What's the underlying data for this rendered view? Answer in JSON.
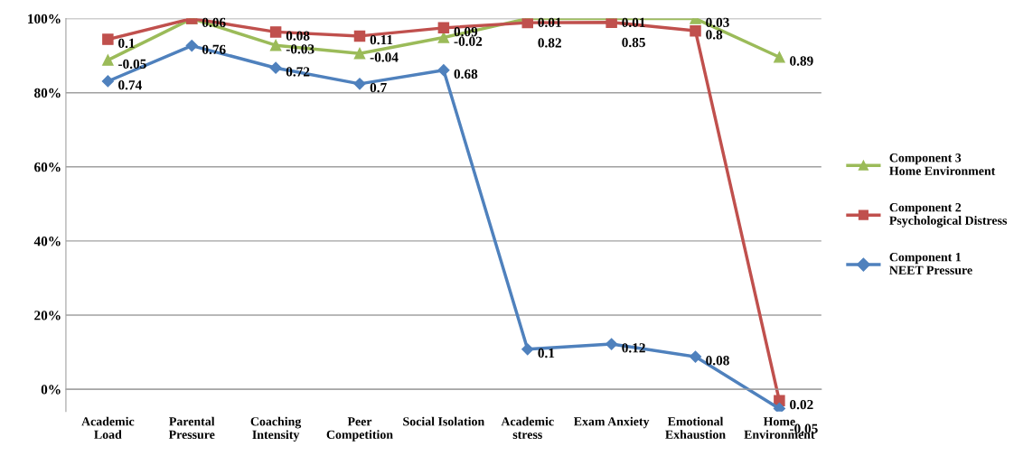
{
  "chart_data": {
    "type": "line",
    "categories": [
      "Academic\nLoad",
      "Parental\nPressure",
      "Coaching\nIntensity",
      "Peer\nCompetition",
      "Social Isolation",
      "Academic\nstress",
      "Exam Anxiety",
      "Emotional\nExhaustion",
      "Home\nEnvironment"
    ],
    "series": [
      {
        "name": "Component 3\nHome Environment",
        "color": "#9bbb59",
        "marker": "triangle",
        "values": [
          88.8,
          100,
          92.8,
          90.6,
          94.9,
          100,
          100,
          100,
          89.6
        ]
      },
      {
        "name": "Component 2\nPsychological Distress",
        "color": "#c0504d",
        "marker": "square",
        "values": [
          94.4,
          100,
          96.4,
          95.3,
          97.5,
          98.9,
          99.0,
          96.7,
          -3.1
        ]
      },
      {
        "name": "Component 1\nNEET Pressure",
        "color": "#4f81bd",
        "marker": "diamond",
        "values": [
          83.1,
          92.7,
          86.7,
          82.4,
          86.1,
          10.8,
          12.2,
          8.8,
          -5.2
        ]
      }
    ],
    "annotations": [
      {
        "text": "-0.05",
        "x": "Academic\nLoad",
        "y": 88.8
      },
      {
        "text": "-0.03",
        "x": "Coaching\nIntensity",
        "y": 92.8
      },
      {
        "text": "-0.04",
        "x": "Peer\nCompetition",
        "y": 90.6
      },
      {
        "text": "-0.02",
        "x": "Social Isolation",
        "y": 94.9
      },
      {
        "text": "0.01",
        "x": "Academic\nstress",
        "y": 100
      },
      {
        "text": "0.01",
        "x": "Exam Anxiety",
        "y": 100
      },
      {
        "text": "0.03",
        "x": "Emotional\nExhaustion",
        "y": 100
      },
      {
        "text": "0.89",
        "x": "Home\nEnvironment",
        "y": 89.6
      },
      {
        "text": "0.1",
        "x": "Academic\nLoad",
        "y": 94.4
      },
      {
        "text": "0.06",
        "x": "Parental\nPressure",
        "y": 100
      },
      {
        "text": "0.08",
        "x": "Coaching\nIntensity",
        "y": 96.4
      },
      {
        "text": "0.11",
        "x": "Peer\nCompetition",
        "y": 95.3
      },
      {
        "text": "0.09",
        "x": "Social Isolation",
        "y": 97.5
      },
      {
        "text": "0.82",
        "x": "Academic\nstress",
        "y": 98.9
      },
      {
        "text": "0.85",
        "x": "Exam Anxiety",
        "y": 99.0
      },
      {
        "text": "0.8",
        "x": "Emotional\nExhaustion",
        "y": 96.7
      },
      {
        "text": "0.02",
        "x": "Home\nEnvironment",
        "y": -3.1
      },
      {
        "text": "0.74",
        "x": "Academic\nLoad",
        "y": 83.1
      },
      {
        "text": "0.76",
        "x": "Parental\nPressure",
        "y": 92.7
      },
      {
        "text": "0.72",
        "x": "Coaching\nIntensity",
        "y": 86.7
      },
      {
        "text": "0.7",
        "x": "Peer\nCompetition",
        "y": 82.4
      },
      {
        "text": "0.68",
        "x": "Social Isolation",
        "y": 86.1
      },
      {
        "text": "0.1",
        "x": "Academic\nstress",
        "y": 10.8
      },
      {
        "text": "0.12",
        "x": "Exam Anxiety",
        "y": 12.2
      },
      {
        "text": "0.08",
        "x": "Emotional\nExhaustion",
        "y": 8.8
      },
      {
        "text": "-0.05",
        "x": "Home\nEnvironment",
        "y": -5.2
      }
    ],
    "ylim": [
      -6,
      100
    ],
    "yticks": [
      {
        "value": 0,
        "label": "0%"
      },
      {
        "value": 20,
        "label": "20%"
      },
      {
        "value": 40,
        "label": "40%"
      },
      {
        "value": 60,
        "label": "60%"
      },
      {
        "value": 80,
        "label": "80%"
      },
      {
        "value": 100,
        "label": "100%"
      }
    ],
    "grid": "y",
    "legend": "right",
    "line_style": "solid"
  }
}
